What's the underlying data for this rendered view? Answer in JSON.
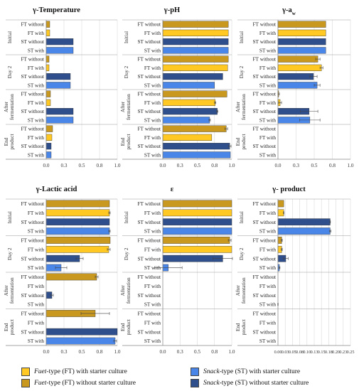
{
  "colors": {
    "ft_with": "#FFC823",
    "ft_without": "#C9981E",
    "st_with": "#4A86E8",
    "st_without": "#2E4E8C",
    "grid": "#d9d9d9",
    "axis": "#888888"
  },
  "groups": [
    "Initial",
    "Day 2",
    "After fermentation",
    "End product"
  ],
  "legend": [
    {
      "prefix": "Fuet",
      "text": "-type (FT) with starter culture",
      "color": "#FFC823"
    },
    {
      "prefix": "Fuet",
      "text": "-type (FT) without starter culture",
      "color": "#C9981E"
    },
    {
      "prefix": "Snack",
      "text": "-type (ST) with starter culture",
      "color": "#4A86E8"
    },
    {
      "prefix": "Snack",
      "text": "-type (ST) without starter culture",
      "color": "#2E4E8C"
    }
  ],
  "chart_data": [
    {
      "type": "bar",
      "title": "γ-Temperature",
      "categories": [
        "FT without",
        "FT with",
        "ST without",
        "ST with"
      ],
      "xlim": [
        0,
        1.0
      ],
      "xticks": [
        "0.0",
        "0.3",
        "0.5",
        "0.8",
        "1.0"
      ],
      "xtick_values": [
        0,
        0.25,
        0.5,
        0.75,
        1.0
      ],
      "groups": [
        {
          "name": "Initial",
          "values": [
            0.05,
            0.05,
            0.38,
            0.38
          ],
          "errors": [
            0,
            0,
            0,
            0
          ]
        },
        {
          "name": "Day 2",
          "values": [
            0.04,
            0.04,
            0.34,
            0.34
          ],
          "errors": [
            0,
            0,
            0,
            0
          ]
        },
        {
          "name": "After fermentation",
          "values": [
            0.06,
            0.06,
            0.38,
            0.38
          ],
          "errors": [
            0,
            0,
            0,
            0
          ]
        },
        {
          "name": "End product",
          "values": [
            0.09,
            0.08,
            0.07,
            0.07
          ],
          "errors": [
            0,
            0,
            0,
            0
          ]
        }
      ]
    },
    {
      "type": "bar",
      "title": "γ-pH",
      "categories": [
        "FT without",
        "FT with",
        "ST without",
        "ST with"
      ],
      "xlim": [
        0,
        1.0
      ],
      "xticks": [
        "0.0",
        "0.3",
        "0.5",
        "0.8",
        "1.0"
      ],
      "xtick_values": [
        0,
        0.25,
        0.5,
        0.75,
        1.0
      ],
      "groups": [
        {
          "name": "Initial",
          "values": [
            0.95,
            0.95,
            0.95,
            0.95
          ],
          "errors": [
            0,
            0,
            0,
            0
          ]
        },
        {
          "name": "Day 2",
          "values": [
            0.95,
            0.94,
            0.87,
            0.75
          ],
          "errors": [
            0,
            0,
            0,
            0
          ]
        },
        {
          "name": "After fermentation",
          "values": [
            0.93,
            0.76,
            0.79,
            0.68
          ],
          "errors": [
            0,
            0.01,
            0.01,
            0.01
          ]
        },
        {
          "name": "End product",
          "values": [
            0.92,
            0.71,
            0.97,
            0.98
          ],
          "errors": [
            0.02,
            0,
            0.02,
            0
          ]
        }
      ]
    },
    {
      "type": "bar",
      "title": "γ-a",
      "title_sub": "w",
      "categories": [
        "FT without",
        "FT with",
        "ST without",
        "ST with"
      ],
      "xlim": [
        0,
        1.0
      ],
      "xticks": [
        "0.0",
        "0.3",
        "0.5",
        "0.8",
        "1.0"
      ],
      "xtick_values": [
        0,
        0.25,
        0.5,
        0.75,
        1.0
      ],
      "groups": [
        {
          "name": "Initial",
          "values": [
            0.66,
            0.66,
            0.66,
            0.66
          ],
          "errors": [
            0,
            0,
            0,
            0
          ]
        },
        {
          "name": "Day 2",
          "values": [
            0.55,
            0.6,
            0.49,
            0.54
          ],
          "errors": [
            0.03,
            0.02,
            0.05,
            0.04
          ]
        },
        {
          "name": "After fermentation",
          "values": [
            0.01,
            0.03,
            0.43,
            0.44
          ],
          "errors": [
            0.01,
            0.02,
            0.12,
            0.14
          ]
        },
        {
          "name": "End product",
          "values": [
            0,
            0,
            0,
            0
          ],
          "errors": [
            0,
            0,
            0,
            0
          ]
        }
      ]
    },
    {
      "type": "bar",
      "title": "γ-Lactic acid",
      "categories": [
        "FT without",
        "FT with",
        "ST without",
        "ST with"
      ],
      "xlim": [
        0,
        1.0
      ],
      "xticks": [
        "0.0",
        "0.3",
        "0.5",
        "0.8",
        "1.0"
      ],
      "xtick_values": [
        0,
        0.25,
        0.5,
        0.75,
        1.0
      ],
      "groups": [
        {
          "name": "Initial",
          "values": [
            0.89,
            0.89,
            0.89,
            0.89
          ],
          "errors": [
            0,
            0.01,
            0,
            0.01
          ]
        },
        {
          "name": "Day 2",
          "values": [
            0.9,
            0.88,
            0.47,
            0.21
          ],
          "errors": [
            0,
            0.02,
            0.05,
            0.08
          ]
        },
        {
          "name": "After fermentation",
          "values": [
            0.71,
            0,
            0.08,
            0
          ],
          "errors": [
            0.02,
            0,
            0.02,
            0
          ]
        },
        {
          "name": "End product",
          "values": [
            0.69,
            0,
            1.0,
            0.97
          ],
          "errors": [
            0.2,
            0,
            0,
            0.02
          ]
        }
      ]
    },
    {
      "type": "bar",
      "title": "ε",
      "categories": [
        "FT without",
        "FT with",
        "ST without",
        "ST with"
      ],
      "xlim": [
        0,
        1.0
      ],
      "xticks": [
        "0.0",
        "0.3",
        "0.5",
        "0.8",
        "1.0"
      ],
      "xtick_values": [
        0,
        0.25,
        0.5,
        0.75,
        1.0
      ],
      "groups": [
        {
          "name": "Initial",
          "values": [
            1.0,
            1.0,
            1.0,
            1.0
          ],
          "errors": [
            0,
            0,
            0,
            0
          ]
        },
        {
          "name": "Day 2",
          "values": [
            0.97,
            1.0,
            0.87,
            0.08
          ],
          "errors": [
            0.02,
            0,
            0.14,
            0.2
          ]
        },
        {
          "name": "After fermentation",
          "values": [
            0,
            0,
            0,
            0
          ],
          "errors": [
            0,
            0,
            0,
            0
          ]
        },
        {
          "name": "End product",
          "values": [
            0,
            0,
            0,
            0
          ],
          "errors": [
            0,
            0,
            0,
            0
          ]
        }
      ]
    },
    {
      "type": "bar",
      "title": "γ- product",
      "categories": [
        "FT without",
        "FT with",
        "ST without",
        "ST with"
      ],
      "xlim": [
        0,
        0.25
      ],
      "xticks": [
        "0.00",
        "0.03",
        "0.05",
        "0.08",
        "0.10",
        "0.13",
        "0.15",
        "0.18",
        "0.20",
        "0.23",
        "0.25"
      ],
      "xtick_values": [
        0,
        0.025,
        0.05,
        0.075,
        0.1,
        0.125,
        0.15,
        0.175,
        0.2,
        0.225,
        0.25
      ],
      "groups": [
        {
          "name": "Initial",
          "values": [
            0.02,
            0.02,
            0.18,
            0.18
          ],
          "errors": [
            0,
            0.001,
            0.001,
            0.003
          ]
        },
        {
          "name": "Day 2",
          "values": [
            0.013,
            0.013,
            0.027,
            0.005
          ],
          "errors": [
            0.002,
            0.002,
            0.008,
            0.002
          ]
        },
        {
          "name": "After fermentation",
          "values": [
            0,
            0,
            0,
            0
          ],
          "errors": [
            0,
            0,
            0,
            0.001
          ]
        },
        {
          "name": "End product",
          "values": [
            0,
            0,
            0,
            0
          ],
          "errors": [
            0,
            0,
            0,
            0
          ]
        }
      ]
    }
  ]
}
